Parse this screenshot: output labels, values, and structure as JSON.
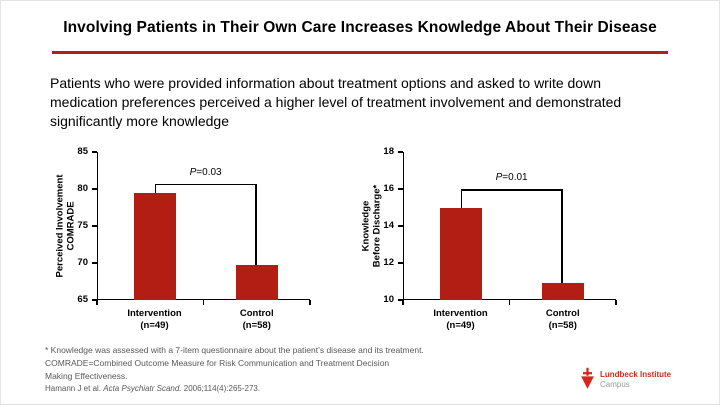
{
  "header": {
    "title": "Involving Patients in Their Own Care Increases Knowledge About Their Disease"
  },
  "intro": {
    "text": "Patients who were provided information about treatment options and asked to write down medication preferences perceived a higher level of treatment involvement and demonstrated significantly more knowledge"
  },
  "chart_data": [
    {
      "type": "bar",
      "ylabel": "Perceived Involvement COMRADE",
      "ylabel_lines": [
        "Perceived Involvement",
        "COMRADE"
      ],
      "ylim": [
        65,
        85
      ],
      "yticks": [
        65,
        70,
        75,
        80,
        85
      ],
      "categories": [
        [
          "Intervention",
          "(n=49)"
        ],
        [
          "Control",
          "(n=58)"
        ]
      ],
      "values": [
        79.5,
        69.7
      ],
      "p_label": {
        "italic": "P",
        "rest": "=0.03"
      },
      "bracket_level": 80.7,
      "bar_color": "#B21E13",
      "grid": false,
      "legend": false
    },
    {
      "type": "bar",
      "ylabel": "Knowledge Before Discharge*",
      "ylabel_lines": [
        "Knowledge",
        "Before Discharge*"
      ],
      "ylim": [
        10,
        18
      ],
      "yticks": [
        10,
        12,
        14,
        16,
        18
      ],
      "categories": [
        [
          "Intervention",
          "(n=49)"
        ],
        [
          "Control",
          "(n=58)"
        ]
      ],
      "values": [
        15.0,
        10.9
      ],
      "p_label": {
        "italic": "P",
        "rest": "=0.01"
      },
      "bracket_level": 16.0,
      "bar_color": "#B21E13",
      "grid": false,
      "legend": false
    }
  ],
  "footnotes": {
    "lines": [
      "* Knowledge was assessed with a 7-item questionnaire about the patient’s disease and its treatment.",
      "COMRADE=Combined Outcome Measure for Risk Communication and Treatment Decision",
      "Making Effectiveness."
    ],
    "citation": {
      "prefix": "Hamann J et al. ",
      "source": "Acta Psychiatr Scand.",
      "suffix": " 2006;114(4):265-273."
    }
  },
  "logo": {
    "name": "Lundbeck Institute",
    "sub": "Campus"
  },
  "colors": {
    "title_rule": "#B22015",
    "bar_red": "#B21E13",
    "logo_red": "#D2281E",
    "footnote_gray": "#595959"
  }
}
